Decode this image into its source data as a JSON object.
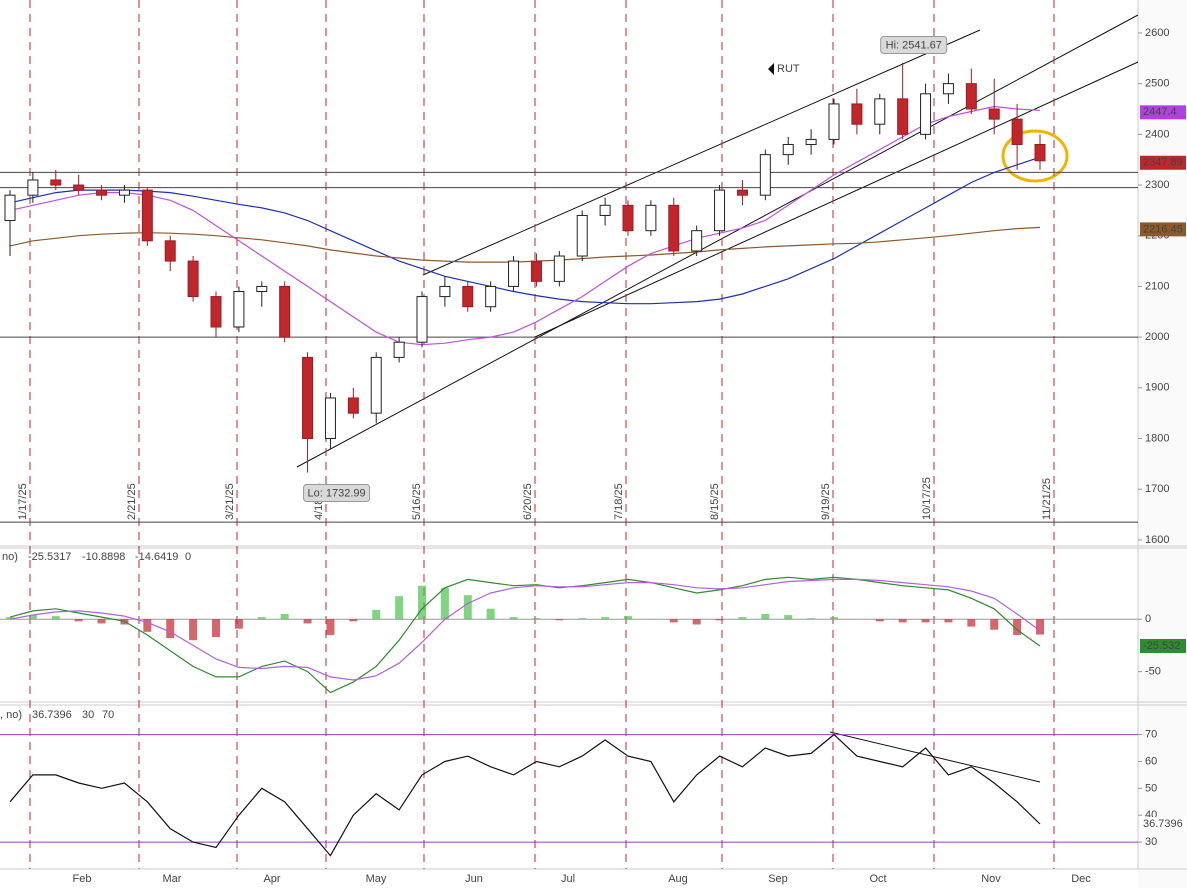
{
  "chart_data": [
    {
      "type": "candlestick",
      "symbol": "RUT",
      "hi_label": "Hi: 2541.67",
      "lo_label": "Lo: 1732.99",
      "open": [
        2230,
        2280,
        2310,
        2300,
        2290,
        2280,
        2290,
        2190,
        2150,
        2080,
        2020,
        2090,
        2100,
        1960,
        1800,
        1880,
        1850,
        1960,
        1990,
        2080,
        2100,
        2060,
        2100,
        2150,
        2110,
        2160,
        2240,
        2260,
        2210,
        2260,
        2170,
        2210,
        2290,
        2280,
        2360,
        2380,
        2390,
        2460,
        2420,
        2470,
        2400,
        2480,
        2500,
        2450,
        2430,
        2380
      ],
      "high": [
        2290,
        2325,
        2330,
        2320,
        2300,
        2300,
        2295,
        2200,
        2160,
        2090,
        2100,
        2110,
        2110,
        1970,
        1890,
        1900,
        1970,
        2000,
        2090,
        2120,
        2110,
        2110,
        2160,
        2165,
        2170,
        2250,
        2275,
        2270,
        2270,
        2275,
        2220,
        2300,
        2310,
        2370,
        2395,
        2410,
        2470,
        2490,
        2480,
        2541.67,
        2500,
        2520,
        2530,
        2510,
        2460,
        2400
      ],
      "low": [
        2160,
        2265,
        2290,
        2280,
        2270,
        2265,
        2180,
        2130,
        2070,
        2000,
        2010,
        2060,
        1990,
        1732.99,
        1780,
        1840,
        1830,
        1950,
        1980,
        2060,
        2050,
        2050,
        2090,
        2100,
        2100,
        2150,
        2220,
        2200,
        2200,
        2160,
        2160,
        2200,
        2260,
        2270,
        2340,
        2360,
        2380,
        2400,
        2400,
        2390,
        2390,
        2460,
        2440,
        2400,
        2330,
        2330
      ],
      "close": [
        2280,
        2310,
        2300,
        2290,
        2280,
        2290,
        2190,
        2150,
        2080,
        2020,
        2090,
        2100,
        2000,
        1800,
        1880,
        1850,
        1960,
        1990,
        2080,
        2100,
        2060,
        2100,
        2150,
        2110,
        2160,
        2240,
        2260,
        2210,
        2260,
        2170,
        2210,
        2290,
        2280,
        2360,
        2380,
        2390,
        2460,
        2420,
        2470,
        2400,
        2480,
        2500,
        2450,
        2430,
        2380,
        2347.89
      ],
      "series": [
        {
          "name": "MA1",
          "color": "#1f2fb0",
          "values": [
            2265,
            2275,
            2285,
            2290,
            2290,
            2290,
            2288,
            2285,
            2278,
            2270,
            2262,
            2255,
            2245,
            2230,
            2210,
            2190,
            2170,
            2150,
            2135,
            2120,
            2110,
            2100,
            2090,
            2082,
            2075,
            2070,
            2068,
            2066,
            2066,
            2068,
            2070,
            2075,
            2085,
            2100,
            2115,
            2135,
            2155,
            2180,
            2205,
            2230,
            2255,
            2280,
            2305,
            2325,
            2340,
            2355
          ]
        },
        {
          "name": "MA2",
          "color": "#8b5a2b",
          "values": [
            2180,
            2190,
            2195,
            2200,
            2203,
            2205,
            2206,
            2205,
            2203,
            2200,
            2196,
            2192,
            2186,
            2180,
            2172,
            2166,
            2160,
            2156,
            2152,
            2150,
            2148,
            2148,
            2148,
            2150,
            2152,
            2155,
            2158,
            2160,
            2162,
            2165,
            2168,
            2172,
            2175,
            2178,
            2180,
            2182,
            2184,
            2185,
            2188,
            2192,
            2196,
            2200,
            2205,
            2210,
            2214,
            2216.45
          ]
        },
        {
          "name": "MA3",
          "color": "#c050e0",
          "values": [
            2250,
            2260,
            2270,
            2280,
            2285,
            2285,
            2280,
            2270,
            2250,
            2220,
            2190,
            2160,
            2130,
            2100,
            2070,
            2040,
            2010,
            1990,
            1985,
            1988,
            1995,
            2000,
            2010,
            2030,
            2055,
            2080,
            2110,
            2140,
            2165,
            2180,
            2195,
            2205,
            2215,
            2230,
            2260,
            2290,
            2320,
            2345,
            2370,
            2395,
            2420,
            2435,
            2445,
            2455,
            2450,
            2447.4
          ]
        }
      ],
      "hlines": [
        2325,
        2295,
        2000,
        1635
      ],
      "event_labels": [
        "1/17/25",
        "2/21/25",
        "3/21/25",
        "4/18/25",
        "5/16/25",
        "6/20/25",
        "7/18/25",
        "8/15/25",
        "9/19/25",
        "10/17/25",
        "11/21/25"
      ],
      "ylim": [
        1588,
        2665
      ],
      "yticks": [
        1600,
        1700,
        1800,
        1900,
        2000,
        2100,
        2200,
        2300,
        2400,
        2500,
        2600
      ]
    },
    {
      "type": "macd",
      "legend_prefix": "no)",
      "legend_param": "0",
      "value_label": "-25.532",
      "series": [
        {
          "name": "MACD",
          "color": "#2e8b2e",
          "values": [
            2,
            8,
            10,
            6,
            2,
            -2,
            -15,
            -30,
            -45,
            -55,
            -55,
            -45,
            -40,
            -50,
            -70,
            -60,
            -45,
            -20,
            10,
            30,
            38,
            35,
            32,
            33,
            30,
            32,
            35,
            38,
            35,
            30,
            25,
            28,
            32,
            38,
            40,
            38,
            40,
            38,
            35,
            32,
            30,
            28,
            20,
            10,
            -10,
            -25.5317
          ]
        },
        {
          "name": "Signal",
          "color": "#b060e0",
          "values": [
            0,
            4,
            7,
            8,
            6,
            3,
            -3,
            -12,
            -25,
            -38,
            -46,
            -47,
            -45,
            -46,
            -55,
            -58,
            -54,
            -42,
            -22,
            0,
            15,
            25,
            30,
            32,
            31,
            31,
            33,
            35,
            35,
            33,
            30,
            29,
            30,
            33,
            36,
            37,
            38,
            38,
            37,
            35,
            33,
            31,
            27,
            20,
            5,
            -10.8898
          ]
        }
      ],
      "histogram": [
        2,
        4,
        3,
        -2,
        -4,
        -5,
        -12,
        -18,
        -20,
        -17,
        -9,
        2,
        5,
        -4,
        -15,
        -2,
        9,
        22,
        32,
        30,
        23,
        10,
        2,
        1,
        -1,
        1,
        2,
        3,
        0,
        -3,
        -5,
        -1,
        2,
        5,
        4,
        1,
        2,
        0,
        -2,
        -3,
        -3,
        -3,
        -7,
        -10,
        -15,
        -14.6419
      ],
      "ylim": [
        -79,
        68
      ],
      "yticks": [
        -50,
        0
      ]
    },
    {
      "type": "line",
      "legend_prefix": ", no)",
      "values": [
        45,
        55,
        55,
        52,
        50,
        52,
        45,
        35,
        30,
        28,
        40,
        50,
        45,
        35,
        25,
        40,
        48,
        42,
        55,
        60,
        62,
        58,
        55,
        60,
        58,
        62,
        68,
        62,
        60,
        45,
        55,
        62,
        58,
        65,
        62,
        63,
        70,
        62,
        60,
        58,
        65,
        55,
        58,
        52,
        45,
        36.7396
      ],
      "levels": [
        30,
        70
      ],
      "ylim": [
        20,
        81
      ],
      "yticks": [
        30,
        40,
        50,
        60,
        70
      ],
      "x_labels": [
        "Feb",
        "Mar",
        "Apr",
        "May",
        "Jun",
        "Jul",
        "Aug",
        "Sep",
        "Oct",
        "Nov",
        "Dec"
      ]
    }
  ]
}
